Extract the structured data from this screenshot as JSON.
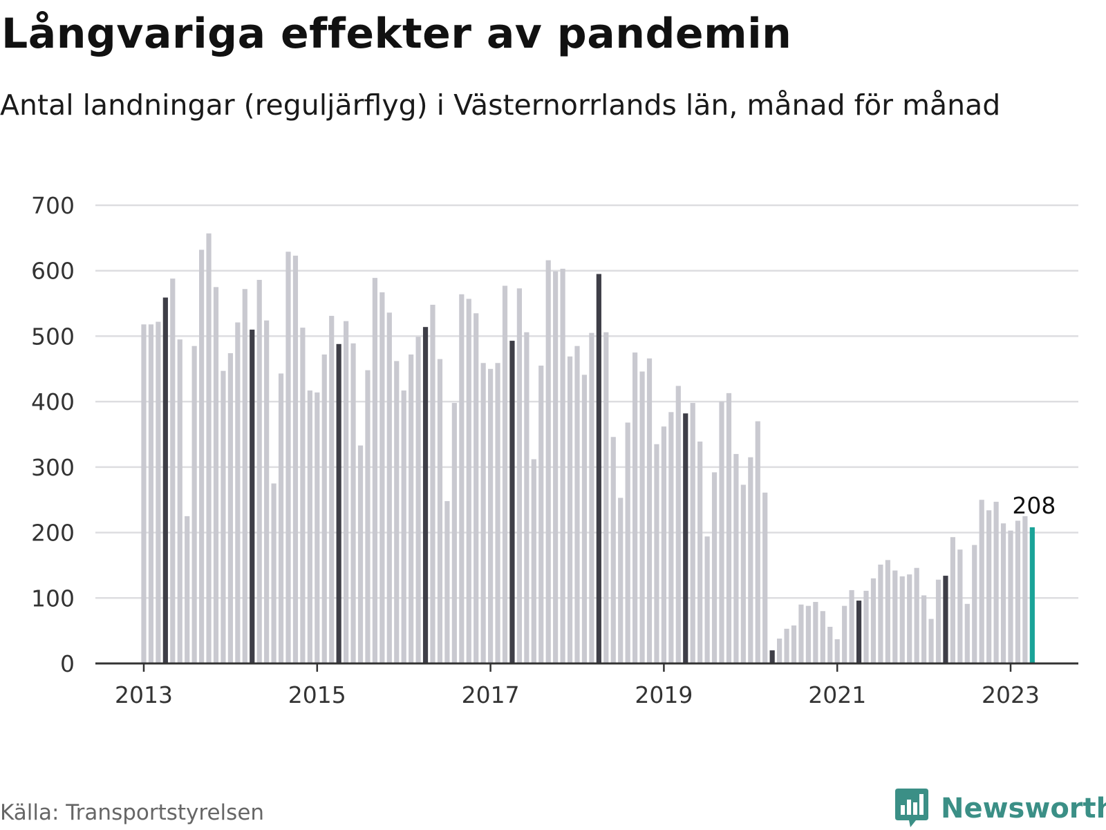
{
  "header": {
    "title": "Långvariga effekter av pandemin",
    "subtitle": "Antal landningar (reguljärflyg) i Västernorrlands län, månad för månad"
  },
  "footer": {
    "source": "Källa: Transportstyrelsen",
    "brand": "Newsworthy",
    "brand_icon": "bar-chart-speech-bubble-icon"
  },
  "colors": {
    "bar_default": "#c9c9d0",
    "bar_april": "#3e3e47",
    "bar_latest": "#1aa398",
    "grid": "#dddde0",
    "axis": "#333333",
    "brand": "#3b8f86"
  },
  "chart_data": {
    "type": "bar",
    "title": "Långvariga effekter av pandemin",
    "subtitle": "Antal landningar (reguljärflyg) i Västernorrlands län, månad för månad",
    "xlabel": "",
    "ylabel": "",
    "ylim": [
      0,
      700
    ],
    "yticks": [
      0,
      100,
      200,
      300,
      400,
      500,
      600,
      700
    ],
    "xticks": [
      2013,
      2015,
      2017,
      2019,
      2021,
      2023
    ],
    "grid": true,
    "start": "2013-01",
    "end": "2023-04",
    "highlight_month": 4,
    "annotation": {
      "label": "208",
      "month": "2023-04"
    },
    "values": [
      518,
      518,
      522,
      559,
      588,
      495,
      225,
      485,
      632,
      657,
      575,
      447,
      474,
      521,
      572,
      510,
      586,
      524,
      275,
      443,
      629,
      623,
      513,
      417,
      414,
      472,
      531,
      488,
      523,
      489,
      333,
      448,
      589,
      567,
      536,
      462,
      417,
      472,
      499,
      514,
      548,
      465,
      248,
      398,
      564,
      557,
      535,
      459,
      450,
      459,
      577,
      493,
      573,
      506,
      312,
      455,
      616,
      599,
      603,
      469,
      485,
      441,
      505,
      595,
      506,
      346,
      253,
      368,
      475,
      446,
      466,
      335,
      362,
      384,
      424,
      382,
      398,
      339,
      194,
      292,
      400,
      413,
      320,
      273,
      315,
      370,
      261,
      20,
      38,
      53,
      58,
      90,
      88,
      94,
      80,
      56,
      37,
      88,
      112,
      96,
      111,
      130,
      151,
      158,
      142,
      133,
      136,
      146,
      104,
      68,
      128,
      134,
      193,
      174,
      91,
      181,
      250,
      234,
      247,
      214,
      203,
      218,
      225,
      208
    ]
  }
}
